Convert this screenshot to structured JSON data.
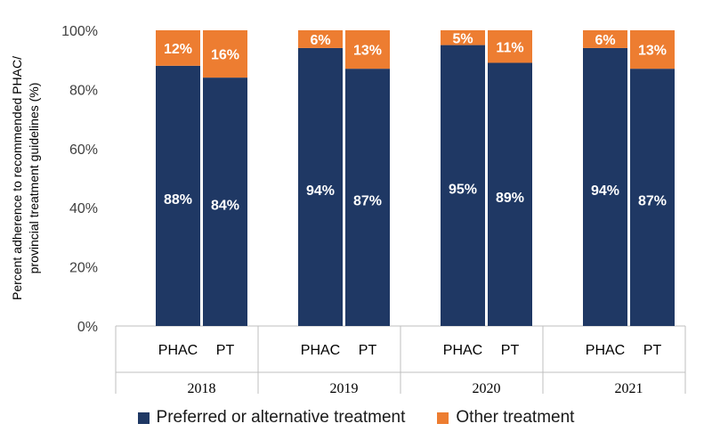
{
  "colors": {
    "preferred": "#1f3864",
    "other": "#ed7d31"
  },
  "chart_data": {
    "type": "bar",
    "stacked": true,
    "ylabel_lines": [
      "Percent adherence to recommended PHAC/",
      "provincial treatment guidelines (%)"
    ],
    "ylim": [
      0,
      100
    ],
    "yticks": [
      "0%",
      "20%",
      "40%",
      "60%",
      "80%",
      "100%"
    ],
    "groups": [
      "2018",
      "2019",
      "2020",
      "2021"
    ],
    "subcategories": [
      "PHAC",
      "PT"
    ],
    "series": [
      {
        "name": "Preferred or alternative treatment",
        "values": [
          88,
          84,
          94,
          87,
          95,
          89,
          94,
          87
        ]
      },
      {
        "name": "Other treatment",
        "values": [
          12,
          16,
          6,
          13,
          5,
          11,
          6,
          13
        ]
      }
    ],
    "grid": false,
    "legend_position": "bottom"
  }
}
